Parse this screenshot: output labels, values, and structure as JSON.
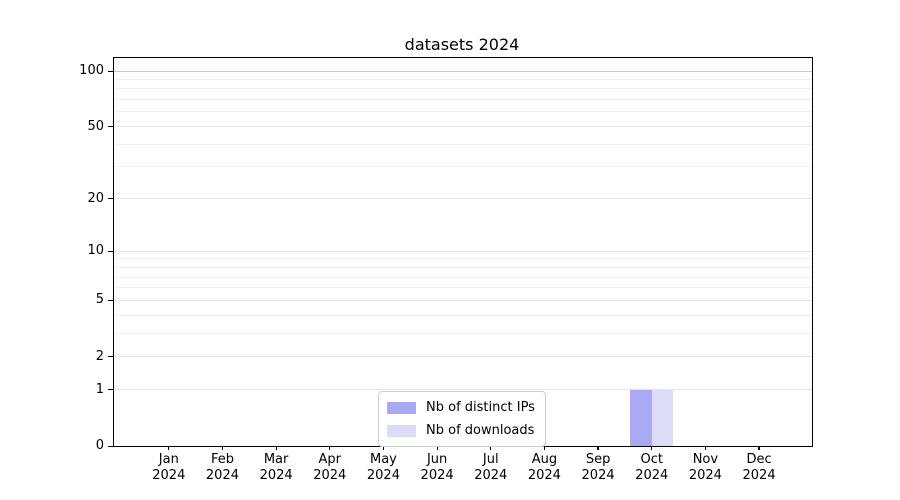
{
  "title": "datasets 2024",
  "colors": {
    "axis": "#000000",
    "text": "#000000",
    "grid_minor": "#efefef",
    "grid_major": "#e4e4e4",
    "grid_top": "#c9c9c9",
    "legend_border": "#cccccc",
    "distinct_ips_bar": "#a9a9f4",
    "downloads_bar": "#dcdcf8"
  },
  "legend": {
    "items": [
      {
        "label": "Nb of distinct IPs",
        "color": "#a9a9f4"
      },
      {
        "label": "Nb of downloads",
        "color": "#dcdcf8"
      }
    ]
  },
  "chart_data": {
    "type": "bar",
    "title": "datasets 2024",
    "categories": [
      "Jan 2024",
      "Feb 2024",
      "Mar 2024",
      "Apr 2024",
      "May 2024",
      "Jun 2024",
      "Jul 2024",
      "Aug 2024",
      "Sep 2024",
      "Oct 2024",
      "Nov 2024",
      "Dec 2024"
    ],
    "series": [
      {
        "name": "Nb of distinct IPs",
        "color": "#a9a9f4",
        "values": [
          0,
          0,
          0,
          0,
          0,
          0,
          0,
          0,
          0,
          1,
          0,
          0
        ]
      },
      {
        "name": "Nb of downloads",
        "color": "#dcdcf8",
        "values": [
          0,
          0,
          0,
          0,
          0,
          0,
          0,
          0,
          0,
          1,
          0,
          0
        ]
      }
    ],
    "xlabel": "",
    "ylabel": "",
    "y_scale": "log1p",
    "ylim": [
      0,
      118
    ],
    "y_ticks": [
      0,
      1,
      2,
      5,
      10,
      20,
      50,
      100
    ],
    "y_minor_gridlines": [
      3,
      4,
      6,
      7,
      8,
      9,
      30,
      40,
      60,
      70,
      80,
      90
    ],
    "grid": "horizontal",
    "legend_position": "lower center inside"
  }
}
